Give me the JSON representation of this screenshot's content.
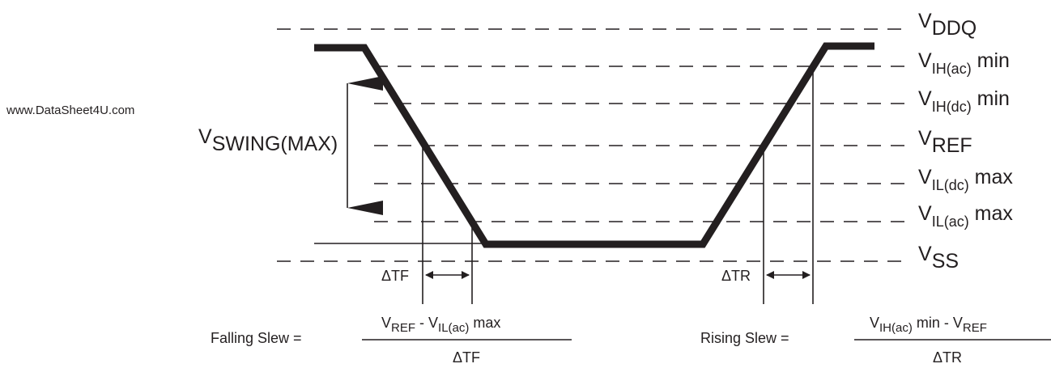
{
  "watermark": "www.DataSheet4U.com",
  "levels": [
    {
      "key": "vddq",
      "base": "V",
      "sub": "DDQ",
      "suffix": ""
    },
    {
      "key": "vih_ac",
      "base": "V",
      "sub": "IH(ac)",
      "suffix": " min"
    },
    {
      "key": "vih_dc",
      "base": "V",
      "sub": "IH(dc)",
      "suffix": " min"
    },
    {
      "key": "vref",
      "base": "V",
      "sub": "REF",
      "suffix": ""
    },
    {
      "key": "vil_dc",
      "base": "V",
      "sub": "IL(dc)",
      "suffix": " max"
    },
    {
      "key": "vil_ac",
      "base": "V",
      "sub": "IL(ac)",
      "suffix": " max"
    },
    {
      "key": "vss",
      "base": "V",
      "sub": "SS",
      "suffix": ""
    }
  ],
  "vswing": {
    "base": "V",
    "sub": "SWING(MAX)"
  },
  "delta_tf": "ΔTF",
  "delta_tr": "ΔTR",
  "falling": {
    "label": "Falling Slew =",
    "num_v1": "V",
    "num_v1_sub": "REF",
    "num_mid": " - V",
    "num_v2_sub": "IL(ac)",
    "num_tail": " max",
    "den": "ΔTF"
  },
  "rising": {
    "label": "Rising Slew =",
    "num_v1": "V",
    "num_v1_sub": "IH(ac)",
    "num_mid": " min - V",
    "num_v2_sub": "REF",
    "num_tail": "",
    "den": "ΔTR"
  }
}
